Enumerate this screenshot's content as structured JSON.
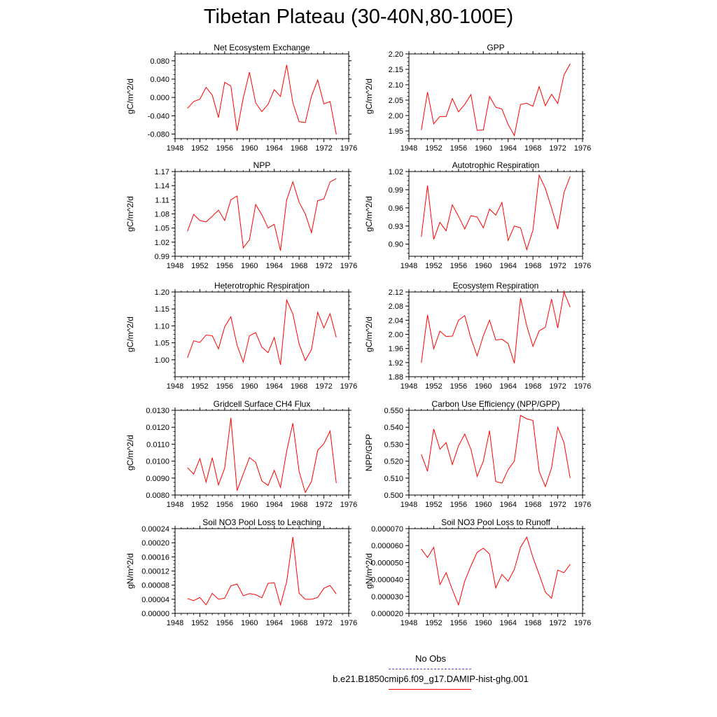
{
  "page": {
    "title": "Tibetan Plateau (30-40N,80-100E)"
  },
  "legend": {
    "entries": [
      {
        "label": "No Obs",
        "color": "#4b4bd6",
        "dash": "dashed"
      },
      {
        "label": "b.e21.B1850cmip6.f09_g17.DAMIP-hist-ghg.001",
        "color": "#ff0000",
        "dash": "solid"
      }
    ]
  },
  "chart_data": [
    {
      "type": "line",
      "title": "Net Ecosystem Exchange",
      "ylabel": "gC/m^2/d",
      "xlabel": "",
      "xlim": [
        1948,
        1976
      ],
      "xticks": [
        "1948",
        "1952",
        "1956",
        "1960",
        "1964",
        "1968",
        "1972",
        "1976"
      ],
      "ylim": [
        -0.09,
        0.095
      ],
      "yticks": [
        "-0.080",
        "-0.040",
        "0.000",
        "0.040",
        "0.080"
      ],
      "series": [
        {
          "color": "#ff0000",
          "x": [
            1950,
            1951,
            1952,
            1953,
            1954,
            1955,
            1956,
            1957,
            1958,
            1959,
            1960,
            1961,
            1962,
            1963,
            1964,
            1965,
            1966,
            1967,
            1968,
            1969,
            1970,
            1971,
            1972,
            1973,
            1974
          ],
          "values": [
            -0.024,
            -0.009,
            -0.004,
            0.022,
            0.005,
            -0.044,
            0.033,
            0.025,
            -0.073,
            -0.001,
            0.055,
            -0.012,
            -0.031,
            -0.015,
            0.017,
            0.002,
            0.071,
            -0.012,
            -0.053,
            -0.055,
            0.003,
            0.038,
            -0.014,
            -0.009,
            -0.081
          ]
        }
      ]
    },
    {
      "type": "line",
      "title": "GPP",
      "ylabel": "gC/m^2/d",
      "xlabel": "",
      "xlim": [
        1948,
        1976
      ],
      "xticks": [
        "1948",
        "1952",
        "1956",
        "1960",
        "1964",
        "1968",
        "1972",
        "1976"
      ],
      "ylim": [
        1.925,
        2.2
      ],
      "yticks": [
        "1.95",
        "2.00",
        "2.05",
        "2.10",
        "2.15",
        "2.20"
      ],
      "series": [
        {
          "color": "#ff0000",
          "x": [
            1950,
            1951,
            1952,
            1953,
            1954,
            1955,
            1956,
            1957,
            1958,
            1959,
            1960,
            1961,
            1962,
            1963,
            1964,
            1965,
            1966,
            1967,
            1968,
            1969,
            1970,
            1971,
            1972,
            1973,
            1974
          ],
          "values": [
            1.953,
            2.076,
            1.973,
            1.997,
            1.997,
            2.055,
            2.012,
            2.036,
            2.068,
            1.952,
            1.953,
            2.062,
            2.027,
            2.021,
            1.971,
            1.935,
            2.036,
            2.04,
            2.03,
            2.094,
            2.032,
            2.069,
            2.039,
            2.131,
            2.168
          ]
        }
      ]
    },
    {
      "type": "line",
      "title": "NPP",
      "ylabel": "gC/m^2/d",
      "xlabel": "",
      "xlim": [
        1948,
        1976
      ],
      "xticks": [
        "1948",
        "1952",
        "1956",
        "1960",
        "1964",
        "1968",
        "1972",
        "1976"
      ],
      "ylim": [
        0.99,
        1.17
      ],
      "yticks": [
        "0.99",
        "1.02",
        "1.05",
        "1.08",
        "1.11",
        "1.14",
        "1.17"
      ],
      "series": [
        {
          "color": "#ff0000",
          "x": [
            1950,
            1951,
            1952,
            1953,
            1954,
            1955,
            1956,
            1957,
            1958,
            1959,
            1960,
            1961,
            1962,
            1963,
            1964,
            1965,
            1966,
            1967,
            1968,
            1969,
            1970,
            1971,
            1972,
            1973,
            1974
          ],
          "values": [
            1.043,
            1.079,
            1.066,
            1.063,
            1.075,
            1.088,
            1.066,
            1.11,
            1.118,
            1.008,
            1.025,
            1.1,
            1.078,
            1.05,
            1.058,
            1.002,
            1.11,
            1.148,
            1.105,
            1.08,
            1.04,
            1.108,
            1.112,
            1.148,
            1.155
          ]
        }
      ]
    },
    {
      "type": "line",
      "title": "Autotrophic Respiration",
      "ylabel": "gC/m^2/d",
      "xlabel": "",
      "xlim": [
        1948,
        1976
      ],
      "xticks": [
        "1948",
        "1952",
        "1956",
        "1960",
        "1964",
        "1968",
        "1972",
        "1976"
      ],
      "ylim": [
        0.88,
        1.02
      ],
      "yticks": [
        "0.90",
        "0.93",
        "0.96",
        "0.99",
        "1.02"
      ],
      "series": [
        {
          "color": "#ff0000",
          "x": [
            1950,
            1951,
            1952,
            1953,
            1954,
            1955,
            1956,
            1957,
            1958,
            1959,
            1960,
            1961,
            1962,
            1963,
            1964,
            1965,
            1966,
            1967,
            1968,
            1969,
            1970,
            1971,
            1972,
            1973,
            1974
          ],
          "values": [
            0.912,
            0.997,
            0.908,
            0.936,
            0.922,
            0.965,
            0.946,
            0.925,
            0.947,
            0.945,
            0.927,
            0.958,
            0.948,
            0.969,
            0.906,
            0.93,
            0.927,
            0.891,
            0.923,
            1.014,
            0.992,
            0.96,
            0.925,
            0.985,
            1.012
          ]
        }
      ]
    },
    {
      "type": "line",
      "title": "Heterotrophic Respiration",
      "ylabel": "gC/m^2/d",
      "xlabel": "",
      "xlim": [
        1948,
        1976
      ],
      "xticks": [
        "1948",
        "1952",
        "1956",
        "1960",
        "1964",
        "1968",
        "1972",
        "1976"
      ],
      "ylim": [
        0.95,
        1.2
      ],
      "yticks": [
        "1.00",
        "1.05",
        "1.10",
        "1.15",
        "1.20"
      ],
      "series": [
        {
          "color": "#ff0000",
          "x": [
            1950,
            1951,
            1952,
            1953,
            1954,
            1955,
            1956,
            1957,
            1958,
            1959,
            1960,
            1961,
            1962,
            1963,
            1964,
            1965,
            1966,
            1967,
            1968,
            1969,
            1970,
            1971,
            1972,
            1973,
            1974
          ],
          "values": [
            1.006,
            1.056,
            1.051,
            1.073,
            1.071,
            1.032,
            1.097,
            1.127,
            1.043,
            0.993,
            1.071,
            1.08,
            1.037,
            1.021,
            1.066,
            0.985,
            1.176,
            1.135,
            1.047,
            0.998,
            1.03,
            1.14,
            1.094,
            1.136,
            1.066
          ]
        }
      ]
    },
    {
      "type": "line",
      "title": "Ecosystem Respiration",
      "ylabel": "gC/m^2/d",
      "xlabel": "",
      "xlim": [
        1948,
        1976
      ],
      "xticks": [
        "1948",
        "1952",
        "1956",
        "1960",
        "1964",
        "1968",
        "1972",
        "1976"
      ],
      "ylim": [
        1.88,
        2.12
      ],
      "yticks": [
        "1.88",
        "1.92",
        "1.96",
        "2.00",
        "2.04",
        "2.08",
        "2.12"
      ],
      "series": [
        {
          "color": "#ff0000",
          "x": [
            1950,
            1951,
            1952,
            1953,
            1954,
            1955,
            1956,
            1957,
            1958,
            1959,
            1960,
            1961,
            1962,
            1963,
            1964,
            1965,
            1966,
            1967,
            1968,
            1969,
            1970,
            1971,
            1972,
            1973,
            1974
          ],
          "values": [
            1.919,
            2.055,
            1.959,
            2.009,
            1.994,
            1.995,
            2.04,
            2.053,
            1.989,
            1.939,
            1.996,
            2.04,
            1.984,
            1.986,
            1.974,
            1.918,
            2.103,
            2.024,
            1.966,
            2.01,
            2.02,
            2.1,
            2.018,
            2.12,
            2.077
          ]
        }
      ]
    },
    {
      "type": "line",
      "title": "Gridcell Surface CH4 Flux",
      "ylabel": "gC/m^2/d",
      "xlabel": "",
      "xlim": [
        1948,
        1976
      ],
      "xticks": [
        "1948",
        "1952",
        "1956",
        "1960",
        "1964",
        "1968",
        "1972",
        "1976"
      ],
      "ylim": [
        0.008,
        0.013
      ],
      "yticks": [
        "0.0080",
        "0.0090",
        "0.0100",
        "0.0110",
        "0.0120",
        "0.0130"
      ],
      "series": [
        {
          "color": "#ff0000",
          "x": [
            1950,
            1951,
            1952,
            1953,
            1954,
            1955,
            1956,
            1957,
            1958,
            1959,
            1960,
            1961,
            1962,
            1963,
            1964,
            1965,
            1966,
            1967,
            1968,
            1969,
            1970,
            1971,
            1972,
            1973,
            1974
          ],
          "values": [
            0.00962,
            0.00923,
            0.01015,
            0.00876,
            0.0102,
            0.0086,
            0.00958,
            0.01256,
            0.00826,
            0.00925,
            0.01021,
            0.00993,
            0.00883,
            0.00857,
            0.00946,
            0.00845,
            0.0106,
            0.01224,
            0.0094,
            0.00815,
            0.0088,
            0.01064,
            0.01103,
            0.01178,
            0.0087
          ]
        }
      ]
    },
    {
      "type": "line",
      "title": "Carbon Use Efficiency (NPP/GPP)",
      "ylabel": "NPP/GPP",
      "xlabel": "",
      "xlim": [
        1948,
        1976
      ],
      "xticks": [
        "1948",
        "1952",
        "1956",
        "1960",
        "1964",
        "1968",
        "1972",
        "1976"
      ],
      "ylim": [
        0.5,
        0.55
      ],
      "yticks": [
        "0.500",
        "0.510",
        "0.520",
        "0.530",
        "0.540",
        "0.550"
      ],
      "series": [
        {
          "color": "#ff0000",
          "x": [
            1950,
            1951,
            1952,
            1953,
            1954,
            1955,
            1956,
            1957,
            1958,
            1959,
            1960,
            1961,
            1962,
            1963,
            1964,
            1965,
            1966,
            1967,
            1968,
            1969,
            1970,
            1971,
            1972,
            1973,
            1974
          ],
          "values": [
            0.524,
            0.514,
            0.539,
            0.527,
            0.531,
            0.518,
            0.529,
            0.536,
            0.527,
            0.511,
            0.52,
            0.538,
            0.508,
            0.507,
            0.515,
            0.52,
            0.547,
            0.545,
            0.544,
            0.514,
            0.505,
            0.516,
            0.54,
            0.531,
            0.51
          ]
        }
      ]
    },
    {
      "type": "line",
      "title": "Soil NO3 Pool Loss to Leaching",
      "ylabel": "gN/m^2/d",
      "xlabel": "",
      "xlim": [
        1948,
        1976
      ],
      "xticks": [
        "1948",
        "1952",
        "1956",
        "1960",
        "1964",
        "1968",
        "1972",
        "1976"
      ],
      "ylim": [
        0.0,
        0.00024
      ],
      "yticks": [
        "0.00000",
        "0.00004",
        "0.00008",
        "0.00012",
        "0.00016",
        "0.00020",
        "0.00024"
      ],
      "series": [
        {
          "color": "#ff0000",
          "x": [
            1950,
            1951,
            1952,
            1953,
            1954,
            1955,
            1956,
            1957,
            1958,
            1959,
            1960,
            1961,
            1962,
            1963,
            1964,
            1965,
            1966,
            1967,
            1968,
            1969,
            1970,
            1971,
            1972,
            1973,
            1974
          ],
          "values": [
            4.2e-05,
            3.6e-05,
            4.5e-05,
            2.4e-05,
            5.7e-05,
            4e-05,
            4.3e-05,
            7.8e-05,
            8.3e-05,
            5e-05,
            5.6e-05,
            5.3e-05,
            4.4e-05,
            8.5e-05,
            8.7e-05,
            2.4e-05,
            9e-05,
            0.000216,
            5.7e-05,
            4e-05,
            4e-05,
            4.5e-05,
            7.1e-05,
            7.9e-05,
            5.5e-05
          ]
        }
      ]
    },
    {
      "type": "line",
      "title": "Soil NO3 Pool Loss to Runoff",
      "ylabel": "gN/m^2/d",
      "xlabel": "",
      "xlim": [
        1948,
        1976
      ],
      "xticks": [
        "1948",
        "1952",
        "1956",
        "1960",
        "1964",
        "1968",
        "1972",
        "1976"
      ],
      "ylim": [
        2e-05,
        7e-05
      ],
      "yticks": [
        "0.000020",
        "0.000030",
        "0.000040",
        "0.000050",
        "0.000060",
        "0.000070"
      ],
      "series": [
        {
          "color": "#ff0000",
          "x": [
            1950,
            1951,
            1952,
            1953,
            1954,
            1955,
            1956,
            1957,
            1958,
            1959,
            1960,
            1961,
            1962,
            1963,
            1964,
            1965,
            1966,
            1967,
            1968,
            1969,
            1970,
            1971,
            1972,
            1973,
            1974
          ],
          "values": [
            5.8e-05,
            5.3e-05,
            5.9e-05,
            3.7e-05,
            4.4e-05,
            3.4e-05,
            2.5e-05,
            3.9e-05,
            4.8e-05,
            5.6e-05,
            5.85e-05,
            5.5e-05,
            3.5e-05,
            4.3e-05,
            3.9e-05,
            4.6e-05,
            5.9e-05,
            6.5e-05,
            5.3e-05,
            4.3e-05,
            3.25e-05,
            2.9e-05,
            4.55e-05,
            4.4e-05,
            4.9e-05
          ]
        }
      ]
    }
  ]
}
